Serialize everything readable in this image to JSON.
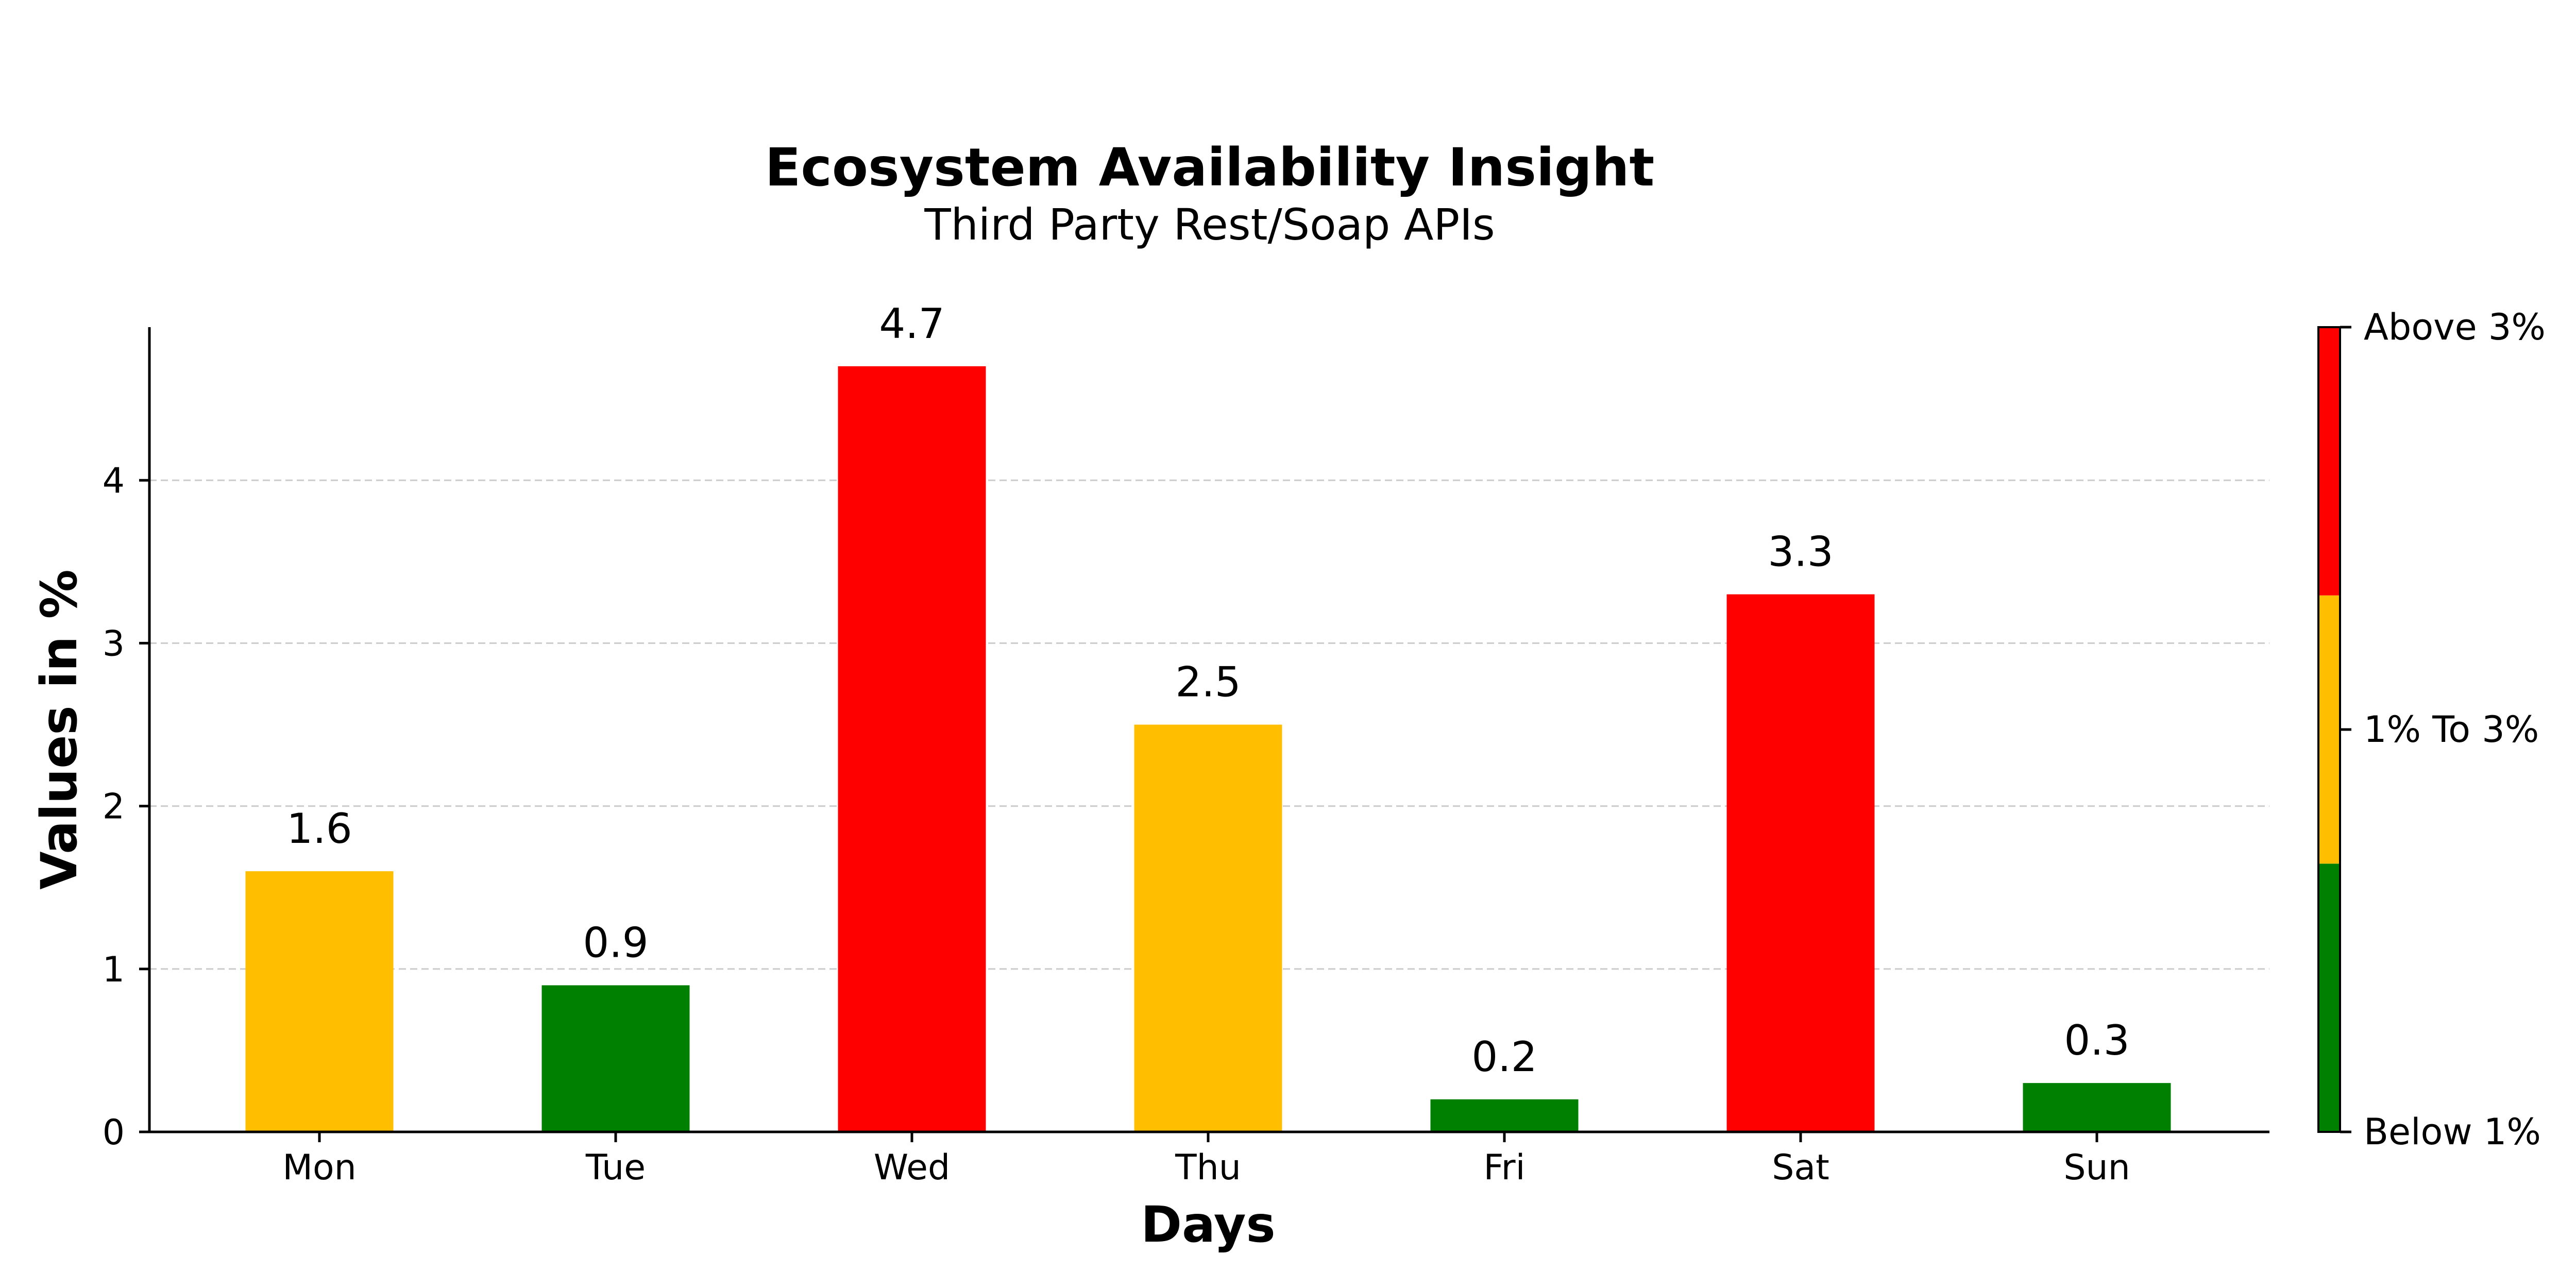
{
  "chart_data": {
    "type": "bar",
    "title": "Ecosystem Availability Insight",
    "subtitle": "Third Party Rest/Soap APIs",
    "xlabel": "Days",
    "ylabel": "Values in %",
    "categories": [
      "Mon",
      "Tue",
      "Wed",
      "Thu",
      "Fri",
      "Sat",
      "Sun"
    ],
    "values": [
      1.6,
      0.9,
      4.7,
      2.5,
      0.2,
      3.3,
      0.3
    ],
    "value_labels": [
      "1.6",
      "0.9",
      "4.7",
      "2.5",
      "0.2",
      "3.3",
      "0.3"
    ],
    "bar_colors": [
      "#FFBF00",
      "#008000",
      "#FF0000",
      "#FFBF00",
      "#008000",
      "#FF0000",
      "#008000"
    ],
    "ylim": [
      0,
      4.94
    ],
    "yticks": [
      0,
      1,
      2,
      3,
      4
    ],
    "ytick_labels": [
      "0",
      "1",
      "2",
      "3",
      "4"
    ],
    "grid": {
      "axis": "y",
      "style": "dashed"
    },
    "colorbar": {
      "placement": "right",
      "segments": [
        {
          "color": "#008000"
        },
        {
          "color": "#FFBF00"
        },
        {
          "color": "#FF0000"
        }
      ],
      "labels": [
        "Below 1%",
        "1% To 3%",
        "Above 3%"
      ]
    }
  }
}
